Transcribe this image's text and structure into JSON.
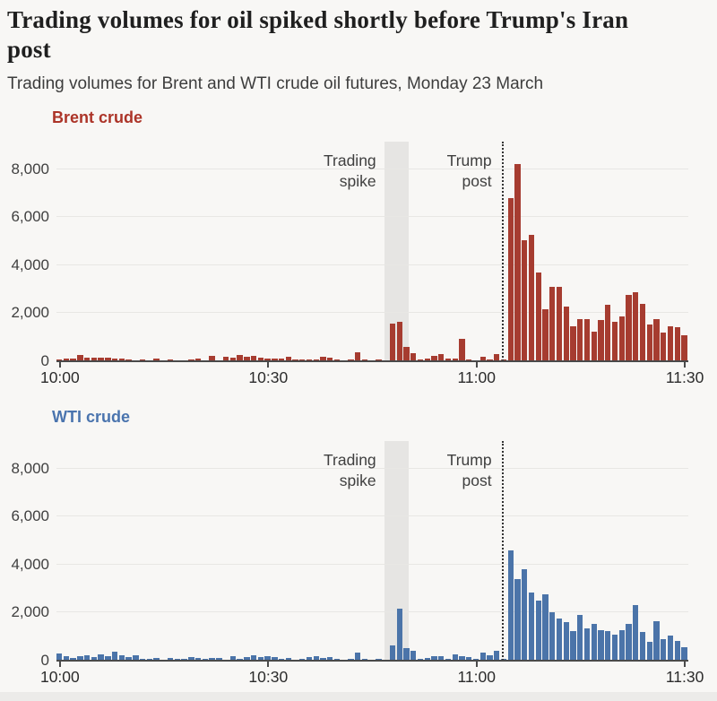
{
  "header": {
    "title": "Trading volumes for oil spiked shortly before Trump's Iran post",
    "subtitle": "Trading volumes for Brent and WTI crude oil futures, Monday 23 March"
  },
  "annotations": {
    "trading_spike": "Trading\nspike",
    "trump_post": "Trump\npost"
  },
  "axis": {
    "y_tick_labels": [
      "0",
      "2,000",
      "4,000",
      "6,000",
      "8,000"
    ],
    "y_tick_values": [
      0,
      2000,
      4000,
      6000,
      8000
    ],
    "y_max": 9000,
    "x_tick_labels": [
      "10:00",
      "10:30",
      "11:00",
      "11:30"
    ],
    "x_tick_minutes": [
      0,
      30,
      60,
      90
    ],
    "total_minutes": 91
  },
  "colors": {
    "background": "#f8f7f5",
    "brent_bar": "#a63c30",
    "brent_label": "#ac3428",
    "wti_bar": "#4b74a9",
    "wti_label": "#4a74ae",
    "grid": "#e8e7e4",
    "axis_line": "#4a4a4a",
    "spike_band": "#e6e5e3",
    "dotted_line": "#333333",
    "annotation_text": "#3f3f3f"
  },
  "chart_data": [
    {
      "type": "bar",
      "title": "Brent crude",
      "x_start": "10:00",
      "x_end": "11:30",
      "x_interval_minutes": 1,
      "ylim": [
        0,
        9000
      ],
      "grid": true,
      "values": [
        80,
        120,
        120,
        250,
        160,
        150,
        140,
        150,
        120,
        100,
        60,
        40,
        80,
        50,
        100,
        40,
        80,
        50,
        40,
        60,
        120,
        50,
        220,
        40,
        180,
        150,
        250,
        180,
        220,
        150,
        100,
        100,
        130,
        200,
        60,
        80,
        60,
        70,
        180,
        150,
        60,
        50,
        80,
        360,
        90,
        40,
        90,
        50,
        1560,
        1630,
        600,
        320,
        90,
        100,
        230,
        300,
        100,
        130,
        920,
        60,
        40,
        170,
        80,
        300,
        60,
        6800,
        8200,
        5050,
        5280,
        3680,
        2180,
        3090,
        3090,
        2280,
        1440,
        1750,
        1750,
        1250,
        1700,
        2350,
        1650,
        1870,
        2750,
        2880,
        2400,
        1550,
        1750,
        1180,
        1460,
        1410,
        1100
      ],
      "annotations": [
        {
          "label": "Trading spike",
          "style": "shaded-band",
          "x_range_minutes": [
            47.2,
            50.7
          ]
        },
        {
          "label": "Trump post",
          "style": "dotted-vline",
          "x_minute": 64.1
        }
      ]
    },
    {
      "type": "bar",
      "title": "WTI crude",
      "x_start": "10:00",
      "x_end": "11:30",
      "x_interval_minutes": 1,
      "ylim": [
        0,
        9000
      ],
      "grid": true,
      "values": [
        300,
        180,
        100,
        200,
        220,
        150,
        260,
        200,
        370,
        230,
        150,
        210,
        90,
        60,
        120,
        40,
        100,
        70,
        60,
        150,
        130,
        60,
        130,
        100,
        40,
        180,
        90,
        140,
        230,
        150,
        200,
        150,
        60,
        110,
        40,
        90,
        160,
        180,
        130,
        150,
        60,
        50,
        70,
        320,
        60,
        40,
        70,
        50,
        650,
        2150,
        530,
        430,
        80,
        100,
        190,
        190,
        90,
        250,
        200,
        150,
        90,
        330,
        230,
        420,
        60,
        4600,
        3400,
        3800,
        2850,
        2500,
        2750,
        2000,
        1750,
        1600,
        1250,
        1900,
        1350,
        1530,
        1280,
        1220,
        1070,
        1280,
        1520,
        2300,
        1200,
        800,
        1660,
        900,
        1030,
        810,
        570
      ],
      "annotations": [
        {
          "label": "Trading spike",
          "style": "shaded-band",
          "x_range_minutes": [
            47.2,
            50.7
          ]
        },
        {
          "label": "Trump post",
          "style": "dotted-vline",
          "x_minute": 64.1
        }
      ]
    }
  ]
}
